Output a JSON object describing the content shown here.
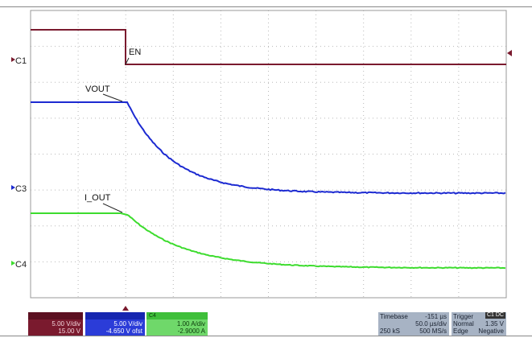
{
  "scope": {
    "channels": {
      "c1_label": "C1",
      "c3_label": "C3",
      "c4_label": "C4"
    },
    "annotations": {
      "en": "EN",
      "vout": "VOUT",
      "i_out": "I_OUT"
    },
    "colors": {
      "c1": "#7a1a2e",
      "c3": "#1c2ad1",
      "c4": "#3ddc2e",
      "grid": "#b8b8b8",
      "frame": "#999999"
    }
  },
  "panels": {
    "ch1": {
      "scale": "5.00 V/div",
      "offset": "15.00 V"
    },
    "ch3": {
      "scale": "5.00 V/div",
      "offset": "-4.650 V ofst"
    },
    "ch4": {
      "tag": "C4",
      "scale": "1.00 A/div",
      "offset": "-2.9000 A"
    },
    "timebase": {
      "title": "Timebase",
      "delay": "-151 µs",
      "per_div": "50.0 µs/div",
      "samples": "250 kS",
      "rate": "500 MS/s"
    },
    "trigger": {
      "title": "Trigger",
      "source": "C1 DC",
      "mode": "Normal",
      "level": "1.35 V",
      "type": "Edge",
      "slope": "Negative"
    }
  }
}
